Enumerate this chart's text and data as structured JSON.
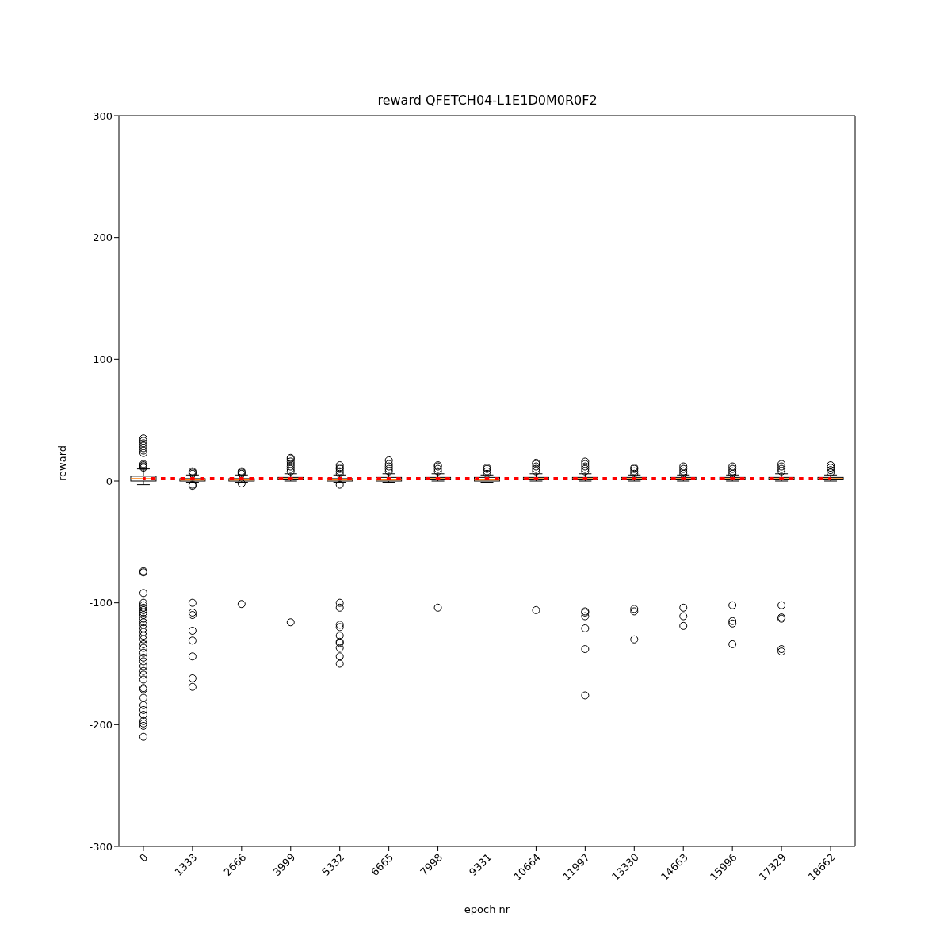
{
  "chart_data": {
    "type": "box",
    "title": "reward QFETCH04-L1E1D0M0R0F2",
    "xlabel": "epoch nr",
    "ylabel": "reward",
    "categories": [
      "0",
      "1333",
      "2666",
      "3999",
      "5332",
      "6665",
      "7998",
      "9331",
      "10664",
      "11997",
      "13330",
      "14663",
      "15996",
      "17329",
      "18662"
    ],
    "ylim": [
      -300,
      300
    ],
    "yticks": [
      -300,
      -200,
      -100,
      0,
      100,
      200,
      300
    ],
    "grid": false,
    "boxes": [
      {
        "low": -3,
        "q1": 0,
        "median": 2,
        "q3": 4,
        "high": 10,
        "outliers": [
          11,
          12,
          13,
          14,
          23,
          25,
          27,
          29,
          31,
          33,
          35,
          -74,
          -75,
          -92,
          -100,
          -102,
          -104,
          -106,
          -108,
          -110,
          -113,
          -116,
          -118,
          -121,
          -124,
          -127,
          -130,
          -134,
          -137,
          -141,
          -145,
          -148,
          -152,
          -156,
          -159,
          -163,
          -170,
          -171,
          -178,
          -184,
          -188,
          -192,
          -197,
          -199,
          -201,
          -210
        ]
      },
      {
        "low": -1,
        "q1": 0,
        "median": 1,
        "q3": 2,
        "high": 5,
        "outliers": [
          6,
          7,
          8,
          -3,
          -4,
          -100,
          -108,
          -110,
          -123,
          -131,
          -144,
          -162,
          -169
        ]
      },
      {
        "low": -1,
        "q1": 0,
        "median": 1,
        "q3": 2,
        "high": 5,
        "outliers": [
          6,
          7,
          8,
          -2,
          -101
        ]
      },
      {
        "low": 0,
        "q1": 1,
        "median": 2,
        "q3": 3,
        "high": 6,
        "outliers": [
          8,
          10,
          12,
          14,
          16,
          18,
          19,
          -116
        ]
      },
      {
        "low": -1,
        "q1": 0,
        "median": 1,
        "q3": 2,
        "high": 5,
        "outliers": [
          6,
          8,
          10,
          11,
          13,
          -3,
          -100,
          -104,
          -118,
          -120,
          -127,
          -132,
          -133,
          -137,
          -144,
          -150
        ]
      },
      {
        "low": -1,
        "q1": 0,
        "median": 1,
        "q3": 3,
        "high": 6,
        "outliers": [
          8,
          10,
          12,
          14,
          17
        ]
      },
      {
        "low": 0,
        "q1": 1,
        "median": 2,
        "q3": 3,
        "high": 6,
        "outliers": [
          8,
          10,
          12,
          13,
          -104
        ]
      },
      {
        "low": -1,
        "q1": 0,
        "median": 1,
        "q3": 3,
        "high": 5,
        "outliers": [
          6,
          8,
          10,
          11
        ]
      },
      {
        "low": 0,
        "q1": 1,
        "median": 2,
        "q3": 3,
        "high": 6,
        "outliers": [
          8,
          10,
          12,
          14,
          15,
          -106
        ]
      },
      {
        "low": 0,
        "q1": 1,
        "median": 2,
        "q3": 3,
        "high": 6,
        "outliers": [
          8,
          10,
          12,
          14,
          16,
          -107,
          -108,
          -111,
          -121,
          -138,
          -176
        ]
      },
      {
        "low": 0,
        "q1": 1,
        "median": 2,
        "q3": 3,
        "high": 5,
        "outliers": [
          6,
          8,
          10,
          11,
          -105,
          -107,
          -130
        ]
      },
      {
        "low": 0,
        "q1": 1,
        "median": 2,
        "q3": 3,
        "high": 5,
        "outliers": [
          6,
          8,
          10,
          12,
          -104,
          -111,
          -119
        ]
      },
      {
        "low": 0,
        "q1": 1,
        "median": 2,
        "q3": 3,
        "high": 5,
        "outliers": [
          6,
          8,
          10,
          12,
          -102,
          -115,
          -117,
          -134
        ]
      },
      {
        "low": 0,
        "q1": 1,
        "median": 2,
        "q3": 3,
        "high": 6,
        "outliers": [
          8,
          10,
          12,
          14,
          -102,
          -112,
          -113,
          -138,
          -140
        ]
      },
      {
        "low": 0,
        "q1": 1,
        "median": 2,
        "q3": 3,
        "high": 5,
        "outliers": [
          7,
          9,
          11,
          13
        ]
      }
    ],
    "series": [
      {
        "type": "line",
        "color": "#ff0000",
        "line_style": "dotted",
        "marker": "none",
        "values": [
          2,
          2,
          2,
          2,
          2,
          2,
          2,
          2,
          2,
          2,
          2,
          2,
          2,
          2,
          2
        ]
      }
    ]
  }
}
